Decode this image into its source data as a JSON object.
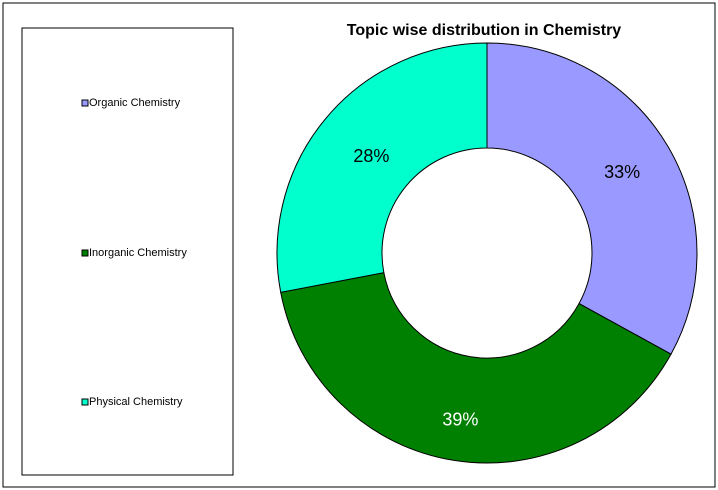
{
  "chart_data": {
    "type": "donut",
    "title": "Topic wise distribution in Chemistry",
    "categories": [
      "Organic Chemistry",
      "Inorganic Chemistry",
      "Physical Chemistry"
    ],
    "values": [
      33,
      39,
      28
    ],
    "value_labels": [
      "33%",
      "39%",
      "28%"
    ],
    "colors": [
      "#9999ff",
      "#008000",
      "#00ffcc"
    ],
    "legend": "left"
  }
}
